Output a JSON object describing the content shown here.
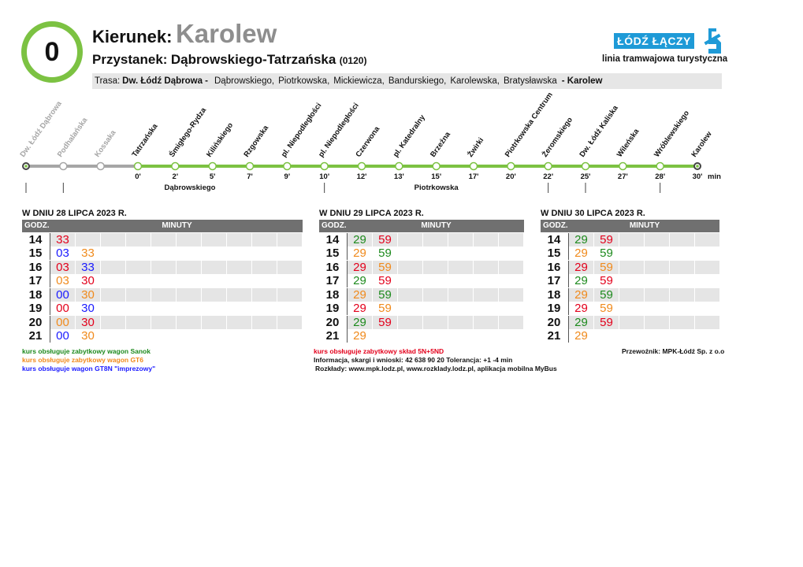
{
  "header": {
    "line_number": "0",
    "direction_label": "Kierunek:",
    "direction_value": "Karolew",
    "stop_label": "Przystanek:",
    "stop_value": "Dąbrowskiego-Tatrzańska",
    "stop_code": "(0120)",
    "logo_text": "ŁÓDŹ ŁĄCZY",
    "subtitle": "linia tramwajowa turystyczna",
    "route_label": "Trasa:",
    "route_start": "Dw. Łódź Dąbrowa -",
    "route_streets": [
      "Dąbrowskiego,",
      "Piotrkowska,",
      "Mickiewicza,",
      "Bandurskiego,",
      "Karolewska,",
      "Bratysławska"
    ],
    "route_end": "- Karolew"
  },
  "diagram": {
    "stops": [
      {
        "name": "Dw. Łódź Dąbrowa",
        "time": "",
        "past": true
      },
      {
        "name": "Podhalańska",
        "time": "",
        "past": true
      },
      {
        "name": "Kossaka",
        "time": "",
        "past": true
      },
      {
        "name": "Tatrzańska",
        "time": "0'",
        "past": false
      },
      {
        "name": "Śmigłego-Rydza",
        "time": "2'",
        "past": false
      },
      {
        "name": "Kilińskiego",
        "time": "5'",
        "past": false
      },
      {
        "name": "Rzgowska",
        "time": "7'",
        "past": false
      },
      {
        "name": "pl. Niepodległości",
        "time": "9'",
        "past": false
      },
      {
        "name": "pl. Niepodległości",
        "time": "10'",
        "past": false
      },
      {
        "name": "Czerwona",
        "time": "12'",
        "past": false
      },
      {
        "name": "pl. Katedralny",
        "time": "13'",
        "past": false
      },
      {
        "name": "Brzeźna",
        "time": "15'",
        "past": false
      },
      {
        "name": "Żwirki",
        "time": "17'",
        "past": false
      },
      {
        "name": "Piotrkowska Centrum",
        "time": "20'",
        "past": false
      },
      {
        "name": "Żeromskiego",
        "time": "22'",
        "past": false
      },
      {
        "name": "Dw. Łódź Kaliska",
        "time": "25'",
        "past": false
      },
      {
        "name": "Wileńska",
        "time": "27'",
        "past": false
      },
      {
        "name": "Wróblewskiego",
        "time": "28'",
        "past": false
      },
      {
        "name": "Karolew",
        "time": "30'",
        "past": false
      }
    ],
    "unit": "min",
    "street_labels": [
      "Dąbrowskiego",
      "Piotrkowska"
    ]
  },
  "timetable": {
    "head_hour": "GODZ.",
    "head_minutes": "MINUTY",
    "days": [
      {
        "title": "W DNIU 28 LIPCA 2023 R.",
        "rows": [
          {
            "hour": "14",
            "minutes": [
              {
                "m": "33",
                "c": "red"
              }
            ]
          },
          {
            "hour": "15",
            "minutes": [
              {
                "m": "03",
                "c": "blue"
              },
              {
                "m": "33",
                "c": "orange"
              }
            ]
          },
          {
            "hour": "16",
            "minutes": [
              {
                "m": "03",
                "c": "red"
              },
              {
                "m": "33",
                "c": "blue"
              }
            ]
          },
          {
            "hour": "17",
            "minutes": [
              {
                "m": "03",
                "c": "orange"
              },
              {
                "m": "30",
                "c": "red"
              }
            ]
          },
          {
            "hour": "18",
            "minutes": [
              {
                "m": "00",
                "c": "blue"
              },
              {
                "m": "30",
                "c": "orange"
              }
            ]
          },
          {
            "hour": "19",
            "minutes": [
              {
                "m": "00",
                "c": "red"
              },
              {
                "m": "30",
                "c": "blue"
              }
            ]
          },
          {
            "hour": "20",
            "minutes": [
              {
                "m": "00",
                "c": "orange"
              },
              {
                "m": "30",
                "c": "red"
              }
            ]
          },
          {
            "hour": "21",
            "minutes": [
              {
                "m": "00",
                "c": "blue"
              },
              {
                "m": "30",
                "c": "orange"
              }
            ]
          }
        ]
      },
      {
        "title": "W DNIU 29 LIPCA 2023 R.",
        "rows": [
          {
            "hour": "14",
            "minutes": [
              {
                "m": "29",
                "c": "green"
              },
              {
                "m": "59",
                "c": "red"
              }
            ]
          },
          {
            "hour": "15",
            "minutes": [
              {
                "m": "29",
                "c": "orange"
              },
              {
                "m": "59",
                "c": "green"
              }
            ]
          },
          {
            "hour": "16",
            "minutes": [
              {
                "m": "29",
                "c": "red"
              },
              {
                "m": "59",
                "c": "orange"
              }
            ]
          },
          {
            "hour": "17",
            "minutes": [
              {
                "m": "29",
                "c": "green"
              },
              {
                "m": "59",
                "c": "red"
              }
            ]
          },
          {
            "hour": "18",
            "minutes": [
              {
                "m": "29",
                "c": "orange"
              },
              {
                "m": "59",
                "c": "green"
              }
            ]
          },
          {
            "hour": "19",
            "minutes": [
              {
                "m": "29",
                "c": "red"
              },
              {
                "m": "59",
                "c": "orange"
              }
            ]
          },
          {
            "hour": "20",
            "minutes": [
              {
                "m": "29",
                "c": "green"
              },
              {
                "m": "59",
                "c": "red"
              }
            ]
          },
          {
            "hour": "21",
            "minutes": [
              {
                "m": "29",
                "c": "orange"
              }
            ]
          }
        ]
      },
      {
        "title": "W DNIU 30 LIPCA 2023 R.",
        "rows": [
          {
            "hour": "14",
            "minutes": [
              {
                "m": "29",
                "c": "green"
              },
              {
                "m": "59",
                "c": "red"
              }
            ]
          },
          {
            "hour": "15",
            "minutes": [
              {
                "m": "29",
                "c": "orange"
              },
              {
                "m": "59",
                "c": "green"
              }
            ]
          },
          {
            "hour": "16",
            "minutes": [
              {
                "m": "29",
                "c": "red"
              },
              {
                "m": "59",
                "c": "orange"
              }
            ]
          },
          {
            "hour": "17",
            "minutes": [
              {
                "m": "29",
                "c": "green"
              },
              {
                "m": "59",
                "c": "red"
              }
            ]
          },
          {
            "hour": "18",
            "minutes": [
              {
                "m": "29",
                "c": "orange"
              },
              {
                "m": "59",
                "c": "green"
              }
            ]
          },
          {
            "hour": "19",
            "minutes": [
              {
                "m": "29",
                "c": "red"
              },
              {
                "m": "59",
                "c": "orange"
              }
            ]
          },
          {
            "hour": "20",
            "minutes": [
              {
                "m": "29",
                "c": "green"
              },
              {
                "m": "59",
                "c": "red"
              }
            ]
          },
          {
            "hour": "21",
            "minutes": [
              {
                "m": "29",
                "c": "orange"
              }
            ]
          }
        ]
      }
    ]
  },
  "legend": {
    "green": "kurs obsługuje zabytkowy wagon Sanok",
    "orange": "kurs obsługuje zabytkowy wagon GT6",
    "blue": "kurs obsługuje wagon GT8N \"imprezowy\"",
    "red": "kurs obsługuje zabytkowy skład 5N+5ND"
  },
  "info": {
    "contact": "Informacja, skargi i wnioski: 42 638 90 20 Tolerancja: +1 -4 min",
    "schedules": "Rozkłady: www.mpk.lodz.pl, www.rozklady.lodz.pl, aplikacja mobilna MyBus",
    "carrier": "Przewoźnik: MPK-Łódź Sp. z o.o"
  },
  "colors": {
    "line_green": "#7cc242",
    "past_gray": "#a6a6a6",
    "brand_blue": "#1e9ad7",
    "green": "#1d8a1d",
    "orange": "#f08a1c",
    "blue": "#1a1aff",
    "red": "#e3001b"
  }
}
